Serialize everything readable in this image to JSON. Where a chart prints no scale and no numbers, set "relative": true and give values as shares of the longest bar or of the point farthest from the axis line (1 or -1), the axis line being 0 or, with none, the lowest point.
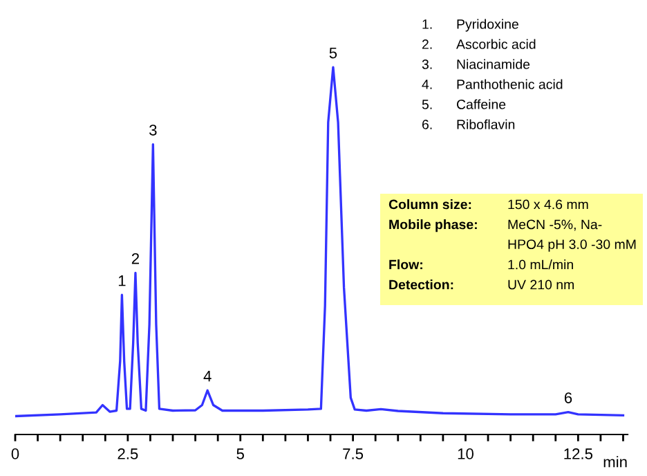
{
  "chart_data": {
    "type": "line",
    "relative": true,
    "xlabel": "min",
    "xlim": [
      0,
      13.6
    ],
    "xticks": [
      0,
      {
        "value": 0.5,
        "label": null
      },
      {
        "value": 1,
        "label": null
      },
      {
        "value": 1.5,
        "label": null
      },
      {
        "value": 2,
        "label": null
      },
      2.5,
      {
        "value": 3,
        "label": null
      },
      {
        "value": 3.5,
        "label": null
      },
      {
        "value": 4,
        "label": null
      },
      {
        "value": 4.5,
        "label": null
      },
      5,
      {
        "value": 5.5,
        "label": null
      },
      {
        "value": 6,
        "label": null
      },
      {
        "value": 6.5,
        "label": null
      },
      {
        "value": 7,
        "label": null
      },
      7.5,
      {
        "value": 8,
        "label": null
      },
      {
        "value": 8.5,
        "label": null
      },
      {
        "value": 9,
        "label": null
      },
      {
        "value": 9.5,
        "label": null
      },
      10,
      {
        "value": 10.5,
        "label": null
      },
      {
        "value": 11,
        "label": null
      },
      {
        "value": 11.5,
        "label": null
      },
      {
        "value": 12,
        "label": null
      },
      12.5,
      {
        "value": 13,
        "label": null
      },
      {
        "value": 13.5,
        "label": null
      }
    ],
    "grid": false,
    "marker": "none",
    "line_style": "solid",
    "tick_labels": "x",
    "series": [
      {
        "color": "#3333ff",
        "x": [
          0,
          1.0,
          1.8,
          1.94,
          2.1,
          2.25,
          2.33,
          2.37,
          2.42,
          2.48,
          2.55,
          2.62,
          2.67,
          2.72,
          2.8,
          2.9,
          2.98,
          3.06,
          3.13,
          3.2,
          3.5,
          4.0,
          4.15,
          4.27,
          4.4,
          4.6,
          5.5,
          6.5,
          6.79,
          6.88,
          6.95,
          7.06,
          7.17,
          7.3,
          7.45,
          7.54,
          7.8,
          8.12,
          8.5,
          9.5,
          11,
          12.0,
          12.28,
          12.5,
          13.5
        ],
        "values": [
          0.05,
          0.055,
          0.06,
          0.08,
          0.062,
          0.065,
          0.2,
          0.38,
          0.2,
          0.07,
          0.07,
          0.25,
          0.44,
          0.25,
          0.07,
          0.065,
          0.3,
          0.79,
          0.3,
          0.07,
          0.065,
          0.066,
          0.08,
          0.12,
          0.08,
          0.065,
          0.065,
          0.068,
          0.07,
          0.35,
          0.85,
          1.0,
          0.85,
          0.4,
          0.1,
          0.068,
          0.065,
          0.069,
          0.064,
          0.058,
          0.055,
          0.055,
          0.061,
          0.055,
          0.052
        ]
      }
    ],
    "annotations": [
      {
        "text": "1",
        "x": 2.37,
        "y": 0.38
      },
      {
        "text": "2",
        "x": 2.67,
        "y": 0.44
      },
      {
        "text": "3",
        "x": 3.06,
        "y": 0.79
      },
      {
        "text": "4",
        "x": 4.27,
        "y": 0.12
      },
      {
        "text": "5",
        "x": 7.06,
        "y": 1.0
      },
      {
        "text": "6",
        "x": 12.28,
        "y": 0.061
      },
      "1. Pyridoxine",
      "2. Ascorbic acid",
      "3. Niacinamide",
      "4. Panthothenic acid",
      "5. Caffeine",
      "6. Riboflavin",
      "Column size: 150 x 4.6 mm",
      "Mobile phase: MeCN -5%, Na-\nHPO4 pH 3.0 -30 mM",
      "Flow: 1.0 mL/min",
      "Detection: UV 210 nm"
    ]
  }
}
